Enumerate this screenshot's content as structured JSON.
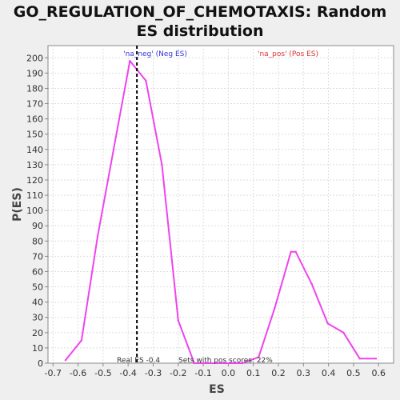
{
  "chart_data": {
    "type": "line",
    "title_line1": "GO_REGULATION_OF_CHEMOTAXIS: Random",
    "title_line2": "ES distribution",
    "xlabel": "ES",
    "ylabel": "P(ES)",
    "xlim": [
      -0.72,
      0.66
    ],
    "ylim": [
      0,
      208
    ],
    "x_ticks": [
      -0.7,
      -0.6,
      -0.5,
      -0.4,
      -0.3,
      -0.2,
      -0.1,
      0.0,
      0.1,
      0.2,
      0.3,
      0.4,
      0.5,
      0.6
    ],
    "x_tick_labels": [
      "-0.7",
      "-0.6",
      "-0.5",
      "-0.4",
      "-0.3",
      "-0.2",
      "-0.1",
      "0.0",
      "0.1",
      "0.2",
      "0.3",
      "0.4",
      "0.5",
      "0.6"
    ],
    "y_ticks": [
      0,
      10,
      20,
      30,
      40,
      50,
      60,
      70,
      80,
      90,
      100,
      110,
      120,
      130,
      140,
      150,
      160,
      170,
      180,
      190,
      200
    ],
    "y_tick_labels": [
      "0",
      "10",
      "20",
      "30",
      "40",
      "50",
      "60",
      "70",
      "80",
      "90",
      "100",
      "110",
      "120",
      "130",
      "140",
      "150",
      "160",
      "170",
      "180",
      "190",
      "200"
    ],
    "grid": true,
    "series": [
      {
        "color": "#ee44ee",
        "x": [
          -0.65,
          -0.586,
          -0.522,
          -0.458,
          -0.393,
          -0.329,
          -0.265,
          -0.2,
          -0.136,
          -0.072,
          -0.008,
          0.057,
          0.121,
          0.185,
          0.25,
          0.269,
          0.333,
          0.397,
          0.46,
          0.525,
          0.59
        ],
        "y": [
          2,
          15,
          83,
          140,
          198,
          185,
          130,
          28,
          0,
          0,
          0,
          0,
          4,
          36,
          73,
          73,
          52,
          26,
          20,
          3,
          3
        ]
      }
    ],
    "real_es": {
      "x": -0.365,
      "label": "Real ES -0.4",
      "color": "#000000"
    },
    "annotations": {
      "neg_label": "'na_neg' (Neg ES)",
      "neg_color": "#3333dd",
      "pos_label": "'na_pos' (Pos ES)",
      "pos_color": "#dd3333",
      "pos_scores_label": "Sets with pos scores: 22%"
    },
    "colors": {
      "background": "#efefef",
      "plot_background": "#ffffff",
      "grid": "#dddddd"
    }
  }
}
